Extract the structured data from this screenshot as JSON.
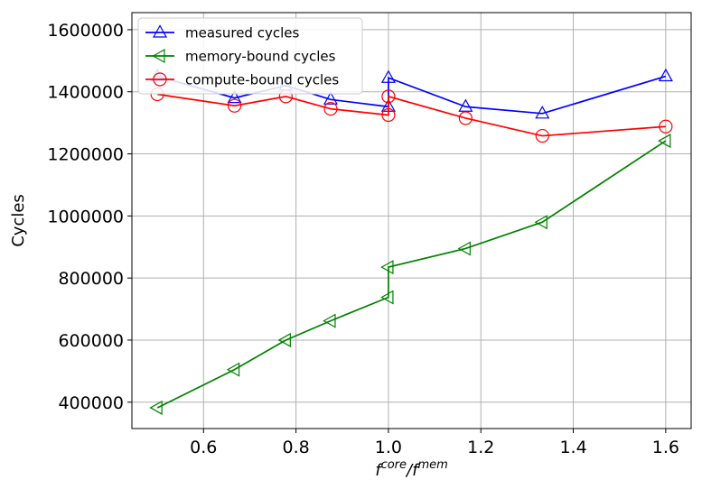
{
  "chart_data": {
    "type": "line",
    "xlabel_base": "f",
    "xlabel_sup1": "core",
    "xlabel_sep": "/f",
    "xlabel_sup2": "mem",
    "ylabel": "Cycles",
    "xlim": [
      0.445,
      1.655
    ],
    "ylim": [
      315000,
      1655000
    ],
    "xticks": [
      0.6,
      0.8,
      1.0,
      1.2,
      1.4,
      1.6
    ],
    "xtick_labels": [
      "0.6",
      "0.8",
      "1.0",
      "1.2",
      "1.4",
      "1.6"
    ],
    "yticks": [
      400000,
      600000,
      800000,
      1000000,
      1200000,
      1400000,
      1600000
    ],
    "ytick_labels": [
      "400000",
      "600000",
      "800000",
      "1000000",
      "1200000",
      "1400000",
      "1600000"
    ],
    "grid": true,
    "legend_position": "top-left",
    "series": [
      {
        "name": "measured cycles",
        "color": "#0000ff",
        "marker": "triangle-up",
        "x": [
          0.5,
          0.667,
          0.778,
          0.875,
          1.0,
          1.0,
          1.167,
          1.333,
          1.6
        ],
        "y": [
          1450000,
          1380000,
          1420000,
          1375000,
          1352000,
          1445000,
          1352000,
          1330000,
          1450000
        ]
      },
      {
        "name": "memory-bound cycles",
        "color": "#008000",
        "marker": "triangle-left",
        "x": [
          0.5,
          0.667,
          0.778,
          0.875,
          1.0,
          1.0,
          1.167,
          1.333,
          1.6
        ],
        "y": [
          382000,
          505000,
          600000,
          662000,
          738000,
          835000,
          895000,
          980000,
          1242000
        ]
      },
      {
        "name": "compute-bound cycles",
        "color": "#ff0000",
        "marker": "circle",
        "x": [
          0.5,
          0.667,
          0.778,
          0.875,
          1.0,
          1.0,
          1.167,
          1.333,
          1.6
        ],
        "y": [
          1392000,
          1355000,
          1385000,
          1345000,
          1325000,
          1385000,
          1315000,
          1258000,
          1288000
        ]
      }
    ]
  }
}
